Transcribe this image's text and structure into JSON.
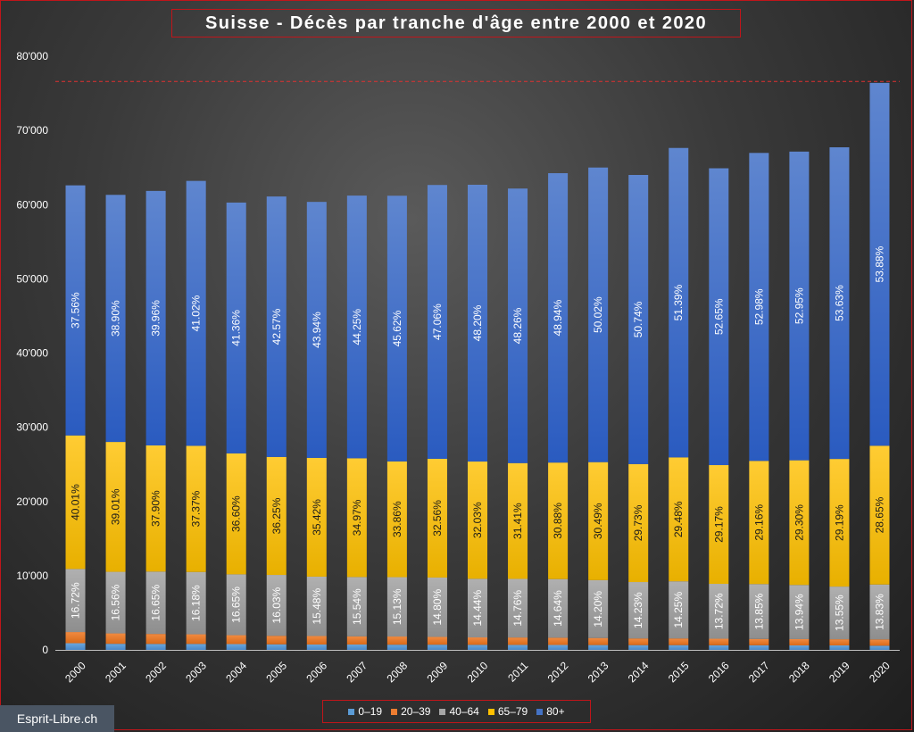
{
  "title": "Suisse - Décès par tranche d'âge entre 2000 et 2020",
  "watermark": "Esprit-Libre.ch",
  "colors": {
    "0-19": "#5b9bd5",
    "20-39": "#ed7d31",
    "40-64": "#a5a5a5",
    "65-79": "#ffc000",
    "80+": "#4472c4",
    "reference_line": "#e03030"
  },
  "chart_data": {
    "type": "bar",
    "stacked": true,
    "title": "Suisse - Décès par tranche d'âge entre 2000 et 2020",
    "xlabel": "",
    "ylabel": "",
    "ylim": [
      0,
      80000
    ],
    "yticks": [
      0,
      10000,
      20000,
      30000,
      40000,
      50000,
      60000,
      70000,
      80000
    ],
    "ytick_labels": [
      "0",
      "10'000",
      "20'000",
      "30'000",
      "40'000",
      "50'000",
      "60'000",
      "70'000",
      "80'000"
    ],
    "reference_line_value": 76600,
    "categories": [
      "2000",
      "2001",
      "2002",
      "2003",
      "2004",
      "2005",
      "2006",
      "2007",
      "2008",
      "2009",
      "2010",
      "2011",
      "2012",
      "2013",
      "2014",
      "2015",
      "2016",
      "2017",
      "2018",
      "2019",
      "2020"
    ],
    "series": [
      {
        "name": "0–19",
        "values": [
          900,
          820,
          800,
          800,
          780,
          750,
          720,
          720,
          700,
          700,
          680,
          670,
          660,
          650,
          640,
          640,
          620,
          620,
          600,
          600,
          560
        ]
      },
      {
        "name": "20–39",
        "values": [
          1500,
          1400,
          1350,
          1300,
          1200,
          1150,
          1150,
          1100,
          1100,
          1050,
          1000,
          1000,
          980,
          950,
          900,
          900,
          880,
          850,
          850,
          830,
          850
        ]
      },
      {
        "name": "40–64",
        "values": [
          8500,
          8300,
          8400,
          8400,
          8200,
          8200,
          8000,
          8000,
          8000,
          8000,
          7900,
          7900,
          7900,
          7800,
          7600,
          7700,
          7400,
          7400,
          7300,
          7100,
          7400
        ]
      },
      {
        "name": "65–79",
        "values": [
          18000,
          17500,
          17000,
          17000,
          16300,
          15900,
          16000,
          16000,
          15600,
          16000,
          15800,
          15600,
          15700,
          15900,
          15900,
          16700,
          16000,
          16600,
          16800,
          17200,
          18700
        ]
      },
      {
        "name": "80+",
        "values": [
          33700,
          33300,
          34300,
          35700,
          33800,
          35100,
          34500,
          35400,
          35800,
          36900,
          37300,
          37000,
          39000,
          39700,
          38960,
          41700,
          40000,
          41500,
          41600,
          42000,
          48900
        ]
      }
    ],
    "data_labels": {
      "40–64": [
        "16.72%",
        "16.56%",
        "16.65%",
        "16.18%",
        "16.65%",
        "16.03%",
        "15.48%",
        "15.54%",
        "15.13%",
        "14.80%",
        "14.44%",
        "14.76%",
        "14.64%",
        "14.20%",
        "14.23%",
        "14.25%",
        "13.72%",
        "13.85%",
        "13.94%",
        "13.55%",
        "13.83%"
      ],
      "65–79": [
        "40.01%",
        "39.01%",
        "37.90%",
        "37.37%",
        "36.60%",
        "36.25%",
        "35.42%",
        "34.97%",
        "33.86%",
        "32.56%",
        "32.03%",
        "31.41%",
        "30.88%",
        "30.49%",
        "29.73%",
        "29.48%",
        "29.17%",
        "29.16%",
        "29.30%",
        "29.19%",
        "28.65%"
      ],
      "80+": [
        "37.56%",
        "38.90%",
        "39.96%",
        "41.02%",
        "41.36%",
        "42.57%",
        "43.94%",
        "44.25%",
        "45.62%",
        "47.06%",
        "48.20%",
        "48.26%",
        "48.94%",
        "50.02%",
        "50.74%",
        "51.39%",
        "52.65%",
        "52.98%",
        "52.95%",
        "53.63%",
        "53.88%"
      ]
    },
    "grid": false,
    "legend_position": "bottom-center"
  }
}
